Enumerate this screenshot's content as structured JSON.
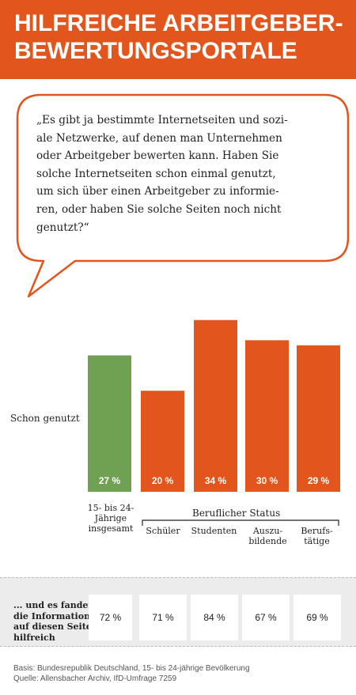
{
  "title": "HILFREICHE ARBEITGEBER-\nBEWERTUNGSPORTALE",
  "question": "„Es gibt ja bestimmte Internetseiten und sozi-\nale Netzwerke, auf denen man Unternehmen\noder Arbeitgeber bewerten kann. Haben Sie\nsolche Internetseiten schon einmal genutzt,\num sich über einen Arbeitgeber zu informie-\nren, oder haben Sie solche Seiten noch nicht\ngenutzt?“",
  "row_label": "Schon genutzt",
  "group_label": "Beruflicher Status",
  "colors": {
    "accent": "#e2551c",
    "total": "#70a152",
    "band": "#ececec"
  },
  "chart_data": {
    "type": "bar",
    "categories": [
      "15- bis 24-\nJährige\ninsgesamt",
      "Schüler",
      "Studenten",
      "Auszu-\nbildende",
      "Berufs-\ntätige"
    ],
    "values": [
      27,
      20,
      34,
      30,
      29
    ],
    "value_labels": [
      "27 %",
      "20 %",
      "34 %",
      "30 %",
      "29 %"
    ],
    "title": "",
    "xlabel": "",
    "ylabel": "Schon genutzt",
    "ylim": [
      0,
      36
    ],
    "grid": false
  },
  "info_row": {
    "label": "... und es fanden\ndie Informationen\nauf diesen Seiten\nhilfreich",
    "values": [
      "72 %",
      "71 %",
      "84 %",
      "67 %",
      "69 %"
    ]
  },
  "footer": "Basis: Bundesrepublik Deutschland, 15- bis 24-jährige Bevölkerung\nQuelle: Allensbacher Archiv, IfD-Umfrage 7259"
}
